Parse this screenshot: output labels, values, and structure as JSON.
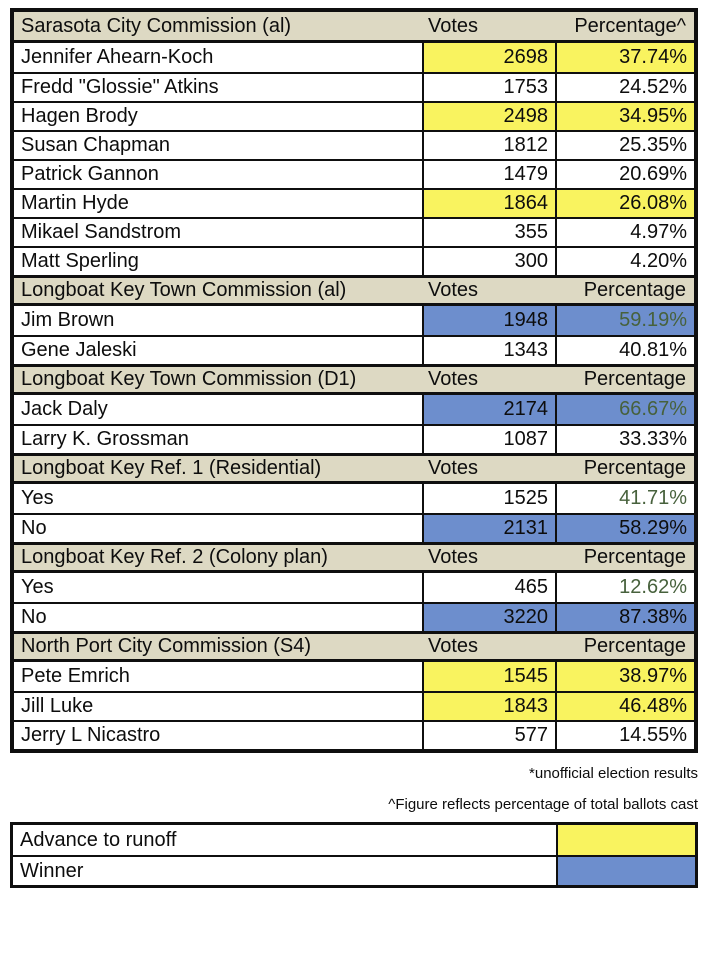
{
  "colors": {
    "section_header_bg": "#DDD9C3",
    "advance_to_runoff_highlight": "#F9F35F",
    "winner_highlight": "#6D8ECD",
    "green_percentage_text": "#47613C",
    "border": "#0F0F0F"
  },
  "sections": [
    {
      "title": "Sarasota City Commission (al)",
      "votes_label": "Votes",
      "pct_label": "Percentage^",
      "rows": [
        {
          "name": "Jennifer Ahearn-Koch",
          "votes": "2698",
          "pct": "37.74%",
          "votes_cls": "hl-runoff",
          "pct_cls": "hl-runoff"
        },
        {
          "name": "Fredd \"Glossie\" Atkins",
          "votes": "1753",
          "pct": "24.52%",
          "votes_cls": "",
          "pct_cls": ""
        },
        {
          "name": "Hagen Brody",
          "votes": "2498",
          "pct": "34.95%",
          "votes_cls": "hl-runoff",
          "pct_cls": "hl-runoff"
        },
        {
          "name": "Susan Chapman",
          "votes": "1812",
          "pct": "25.35%",
          "votes_cls": "",
          "pct_cls": ""
        },
        {
          "name": "Patrick Gannon",
          "votes": "1479",
          "pct": "20.69%",
          "votes_cls": "",
          "pct_cls": ""
        },
        {
          "name": "Martin Hyde",
          "votes": "1864",
          "pct": "26.08%",
          "votes_cls": "hl-runoff",
          "pct_cls": "hl-runoff"
        },
        {
          "name": "Mikael Sandstrom",
          "votes": "355",
          "pct": "4.97%",
          "votes_cls": "",
          "pct_cls": ""
        },
        {
          "name": "Matt Sperling",
          "votes": "300",
          "pct": "4.20%",
          "votes_cls": "",
          "pct_cls": ""
        }
      ]
    },
    {
      "title": "Longboat Key Town Commission (al)",
      "votes_label": "Votes",
      "pct_label": "Percentage",
      "rows": [
        {
          "name": "Jim Brown",
          "votes": "1948",
          "pct": "59.19%",
          "votes_cls": "hl-winner",
          "pct_cls": "hl-winner green"
        },
        {
          "name": "Gene Jaleski",
          "votes": "1343",
          "pct": "40.81%",
          "votes_cls": "",
          "pct_cls": ""
        }
      ]
    },
    {
      "title": "Longboat Key Town Commission (D1)",
      "votes_label": "Votes",
      "pct_label": "Percentage",
      "rows": [
        {
          "name": "Jack Daly",
          "votes": "2174",
          "pct": "66.67%",
          "votes_cls": "hl-winner",
          "pct_cls": "hl-winner green"
        },
        {
          "name": "Larry K. Grossman",
          "votes": "1087",
          "pct": "33.33%",
          "votes_cls": "",
          "pct_cls": ""
        }
      ]
    },
    {
      "title": "Longboat Key Ref. 1 (Residential)",
      "votes_label": "Votes",
      "pct_label": "Percentage",
      "rows": [
        {
          "name": "Yes",
          "votes": "1525",
          "pct": "41.71%",
          "votes_cls": "",
          "pct_cls": "green"
        },
        {
          "name": "No",
          "votes": "2131",
          "pct": "58.29%",
          "votes_cls": "hl-winner",
          "pct_cls": "hl-winner"
        }
      ]
    },
    {
      "title": "Longboat Key Ref. 2 (Colony plan)",
      "votes_label": "Votes",
      "pct_label": "Percentage",
      "rows": [
        {
          "name": "Yes",
          "votes": "465",
          "pct": "12.62%",
          "votes_cls": "",
          "pct_cls": "green"
        },
        {
          "name": "No",
          "votes": "3220",
          "pct": "87.38%",
          "votes_cls": "hl-winner",
          "pct_cls": "hl-winner"
        }
      ]
    },
    {
      "title": "North Port City Commission (S4)",
      "votes_label": "Votes",
      "pct_label": "Percentage",
      "rows": [
        {
          "name": "Pete Emrich",
          "votes": "1545",
          "pct": "38.97%",
          "votes_cls": "hl-runoff",
          "pct_cls": "hl-runoff"
        },
        {
          "name": "Jill Luke",
          "votes": "1843",
          "pct": "46.48%",
          "votes_cls": "hl-runoff",
          "pct_cls": "hl-runoff"
        },
        {
          "name": "Jerry L Nicastro",
          "votes": "577",
          "pct": "14.55%",
          "votes_cls": "",
          "pct_cls": ""
        }
      ]
    }
  ],
  "footnotes": [
    "*unofficial election results",
    "^Figure reflects percentage of total ballots cast"
  ],
  "legend": [
    {
      "label": "Advance to runoff",
      "swatch_cls": "hl-runoff"
    },
    {
      "label": "Winner",
      "swatch_cls": "hl-winner"
    }
  ]
}
